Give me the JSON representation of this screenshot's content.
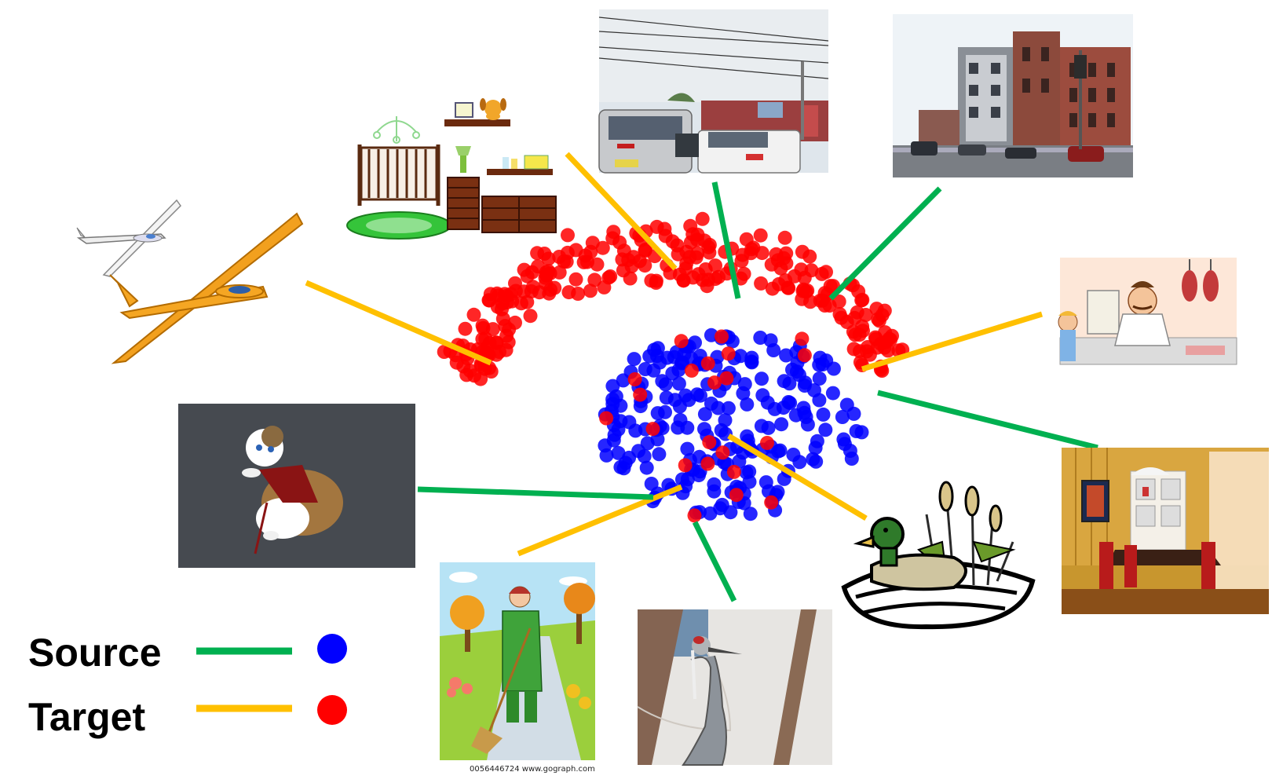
{
  "legend": {
    "source_label": "Source",
    "target_label": "Target"
  },
  "colors": {
    "source_line": "#00b050",
    "target_line": "#ffc000",
    "source_dot": "#0000ff",
    "target_dot": "#ff0000"
  },
  "images": [
    {
      "name": "gliders-clipart",
      "domain": "target"
    },
    {
      "name": "nursery-furniture-clipart",
      "domain": "target"
    },
    {
      "name": "street-cars-photo",
      "domain": "source"
    },
    {
      "name": "city-buildings-photo",
      "domain": "source"
    },
    {
      "name": "butcher-shop-clipart",
      "domain": "target"
    },
    {
      "name": "dining-room-photo",
      "domain": "source"
    },
    {
      "name": "duck-woodcut-clipart",
      "domain": "target"
    },
    {
      "name": "crane-bird-photo",
      "domain": "source"
    },
    {
      "name": "gardener-sweeping-clipart",
      "domain": "target"
    },
    {
      "name": "cat-costume-photo",
      "domain": "source"
    }
  ],
  "gardener_watermark": "0056446724  www.gograph.com"
}
